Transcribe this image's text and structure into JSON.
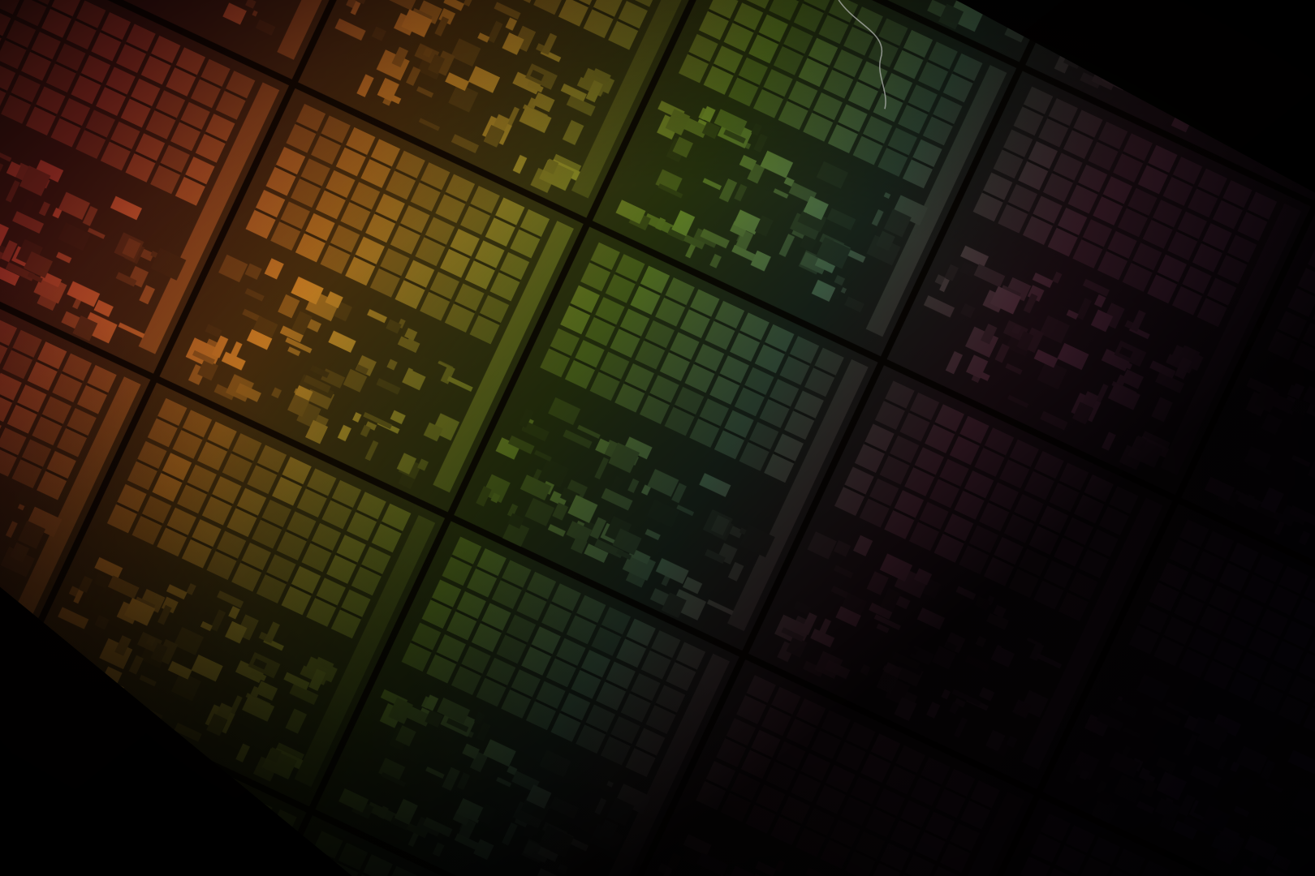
{
  "image": {
    "subject": "silicon-wafer-dies",
    "palette": {
      "background": "#050302",
      "scribe_line": "#1a120a",
      "left_tint": "#ff5a3c",
      "upper_tint": "#ff9a2a",
      "center_tint": "#9fe03a",
      "right_tint": "#ff5fb0",
      "far_right_tint": "#c060ff",
      "highlight": "#ffe060"
    }
  }
}
